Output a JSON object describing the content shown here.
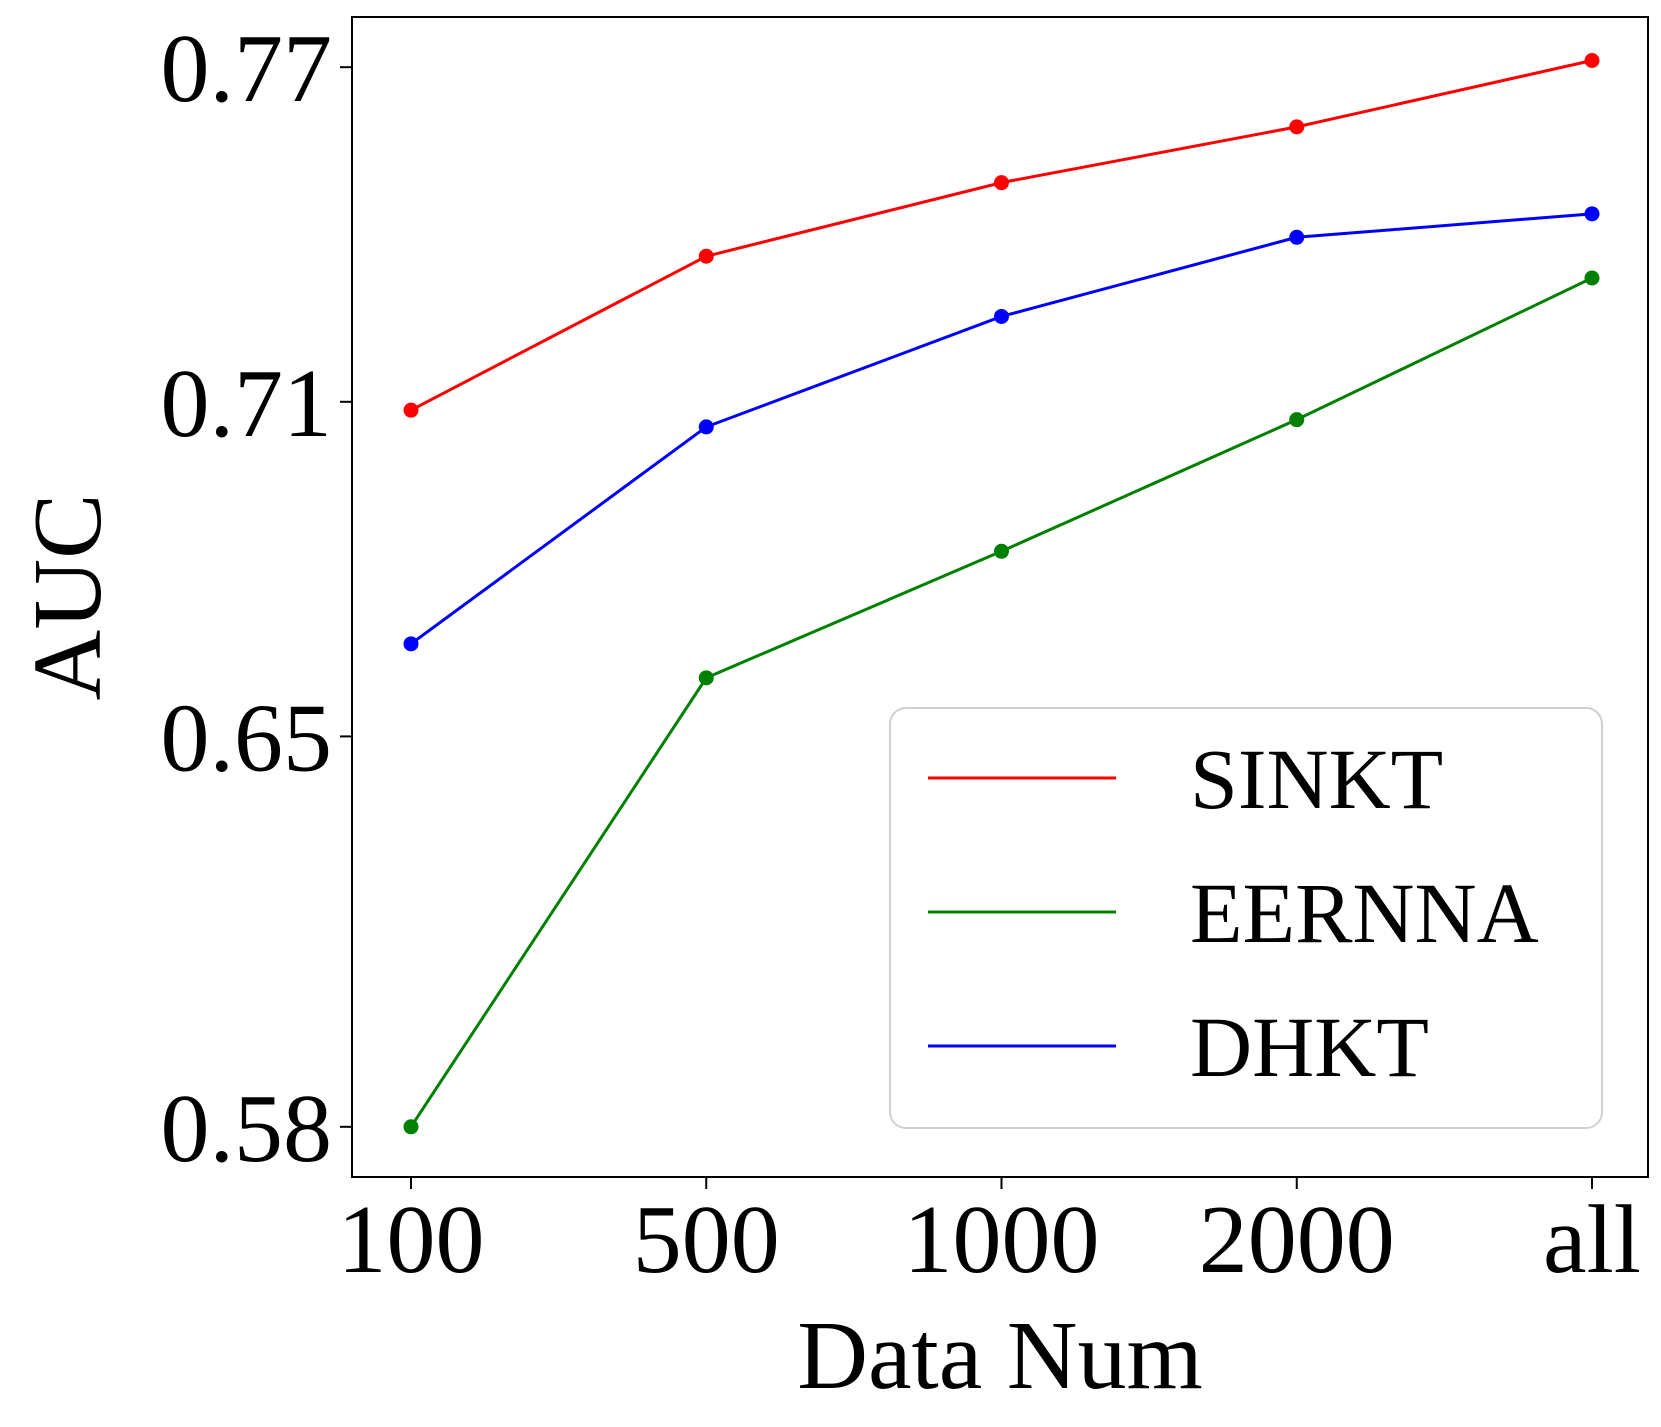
{
  "chart_data": {
    "type": "line",
    "title": "",
    "xlabel": "Data Num",
    "ylabel": "AUC",
    "categories": [
      "100",
      "500",
      "1000",
      "2000",
      "all"
    ],
    "yticks": [
      "0.58",
      "0.65",
      "0.71",
      "0.77"
    ],
    "ylim": [
      0.571,
      0.779
    ],
    "grid": false,
    "legend_position": "lower-right",
    "series": [
      {
        "name": "SINKT",
        "color": "#ff0000",
        "values": [
          0.7085,
          0.7361,
          0.7493,
          0.7593,
          0.7712
        ]
      },
      {
        "name": "EERNNA",
        "color": "#008000",
        "values": [
          0.58,
          0.6605,
          0.6832,
          0.7068,
          0.7322
        ]
      },
      {
        "name": "DHKT",
        "color": "#0000ff",
        "values": [
          0.6666,
          0.7055,
          0.7253,
          0.7395,
          0.7437
        ]
      }
    ]
  }
}
